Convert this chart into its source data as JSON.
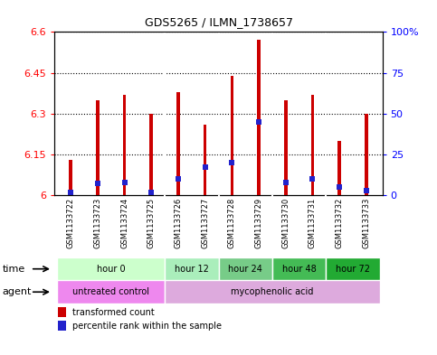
{
  "title": "GDS5265 / ILMN_1738657",
  "samples": [
    "GSM1133722",
    "GSM1133723",
    "GSM1133724",
    "GSM1133725",
    "GSM1133726",
    "GSM1133727",
    "GSM1133728",
    "GSM1133729",
    "GSM1133730",
    "GSM1133731",
    "GSM1133732",
    "GSM1133733"
  ],
  "bar_values": [
    6.13,
    6.35,
    6.37,
    6.3,
    6.38,
    6.26,
    6.44,
    6.57,
    6.35,
    6.37,
    6.2,
    6.3
  ],
  "percentile_values": [
    2,
    7,
    8,
    2,
    10,
    17,
    20,
    45,
    8,
    10,
    5,
    3
  ],
  "ymin": 6.0,
  "ymax": 6.6,
  "y_ticks": [
    6.0,
    6.15,
    6.3,
    6.45,
    6.6
  ],
  "y_tick_labels": [
    "6",
    "6.15",
    "6.3",
    "6.45",
    "6.6"
  ],
  "right_ticks": [
    0,
    25,
    50,
    75,
    100
  ],
  "right_tick_labels": [
    "0",
    "25",
    "50",
    "75",
    "100%"
  ],
  "bar_color": "#cc0000",
  "percentile_color": "#2222cc",
  "bar_width": 0.12,
  "time_groups": [
    {
      "label": "hour 0",
      "start": 0,
      "end": 3,
      "color": "#ccffcc"
    },
    {
      "label": "hour 12",
      "start": 4,
      "end": 5,
      "color": "#aaeebb"
    },
    {
      "label": "hour 24",
      "start": 6,
      "end": 7,
      "color": "#77cc88"
    },
    {
      "label": "hour 48",
      "start": 8,
      "end": 9,
      "color": "#44bb55"
    },
    {
      "label": "hour 72",
      "start": 10,
      "end": 11,
      "color": "#22aa33"
    }
  ],
  "agent_groups": [
    {
      "label": "untreated control",
      "start": 0,
      "end": 3,
      "color": "#ee88ee"
    },
    {
      "label": "mycophenolic acid",
      "start": 4,
      "end": 11,
      "color": "#ddaadd"
    }
  ],
  "bg_color": "#ffffff",
  "sample_bg": "#cccccc",
  "label_divider_color": "#ffffff",
  "grid_color": "#000000"
}
